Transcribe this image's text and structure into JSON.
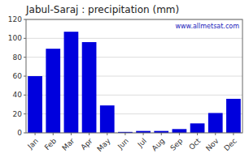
{
  "chart_data": {
    "type": "bar",
    "title": "Jabul-Saraj : precipitation (mm)",
    "categories": [
      "Jan",
      "Feb",
      "Mar",
      "Apr",
      "May",
      "Jun",
      "Jul",
      "Aug",
      "Sep",
      "Oct",
      "Nov",
      "Dec"
    ],
    "values": [
      60,
      89,
      107,
      96,
      29,
      1,
      2,
      2,
      4,
      10,
      21,
      36
    ],
    "color": "#0000dd",
    "ylim": [
      0,
      120
    ],
    "yticks": [
      0,
      20,
      40,
      60,
      80,
      100,
      120
    ],
    "grid": true,
    "annotation": "www.allmetsat.com"
  }
}
